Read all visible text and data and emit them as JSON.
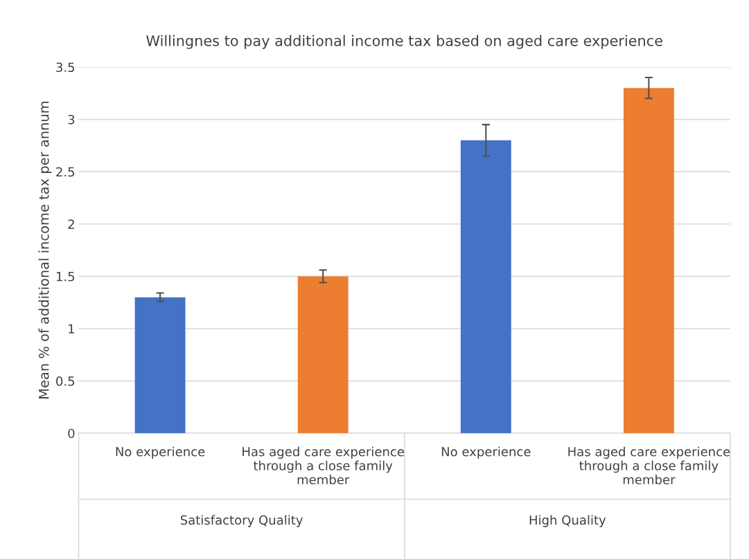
{
  "chart_data": {
    "type": "bar",
    "title": "Willingnes to pay additional income tax based on aged care experience",
    "ylabel": "Mean % of additional income tax per annum",
    "categories": [
      "No experience",
      "Has aged care experience\nthrough a close family\nmember",
      "No experience",
      "Has aged care experience\nthrough a close family\nmember"
    ],
    "values": [
      1.3,
      1.5,
      2.8,
      3.3
    ],
    "errors": [
      0.04,
      0.06,
      0.15,
      0.1
    ],
    "colors": [
      "#4472c4",
      "#ed7d31",
      "#4472c4",
      "#ed7d31"
    ],
    "ylim": [
      0,
      3.5
    ],
    "yticks": [
      0,
      0.5,
      1,
      1.5,
      2,
      2.5,
      3,
      3.5
    ],
    "grid": "y",
    "annotations": [
      "Satisfactory Quality",
      "High Quality"
    ]
  }
}
